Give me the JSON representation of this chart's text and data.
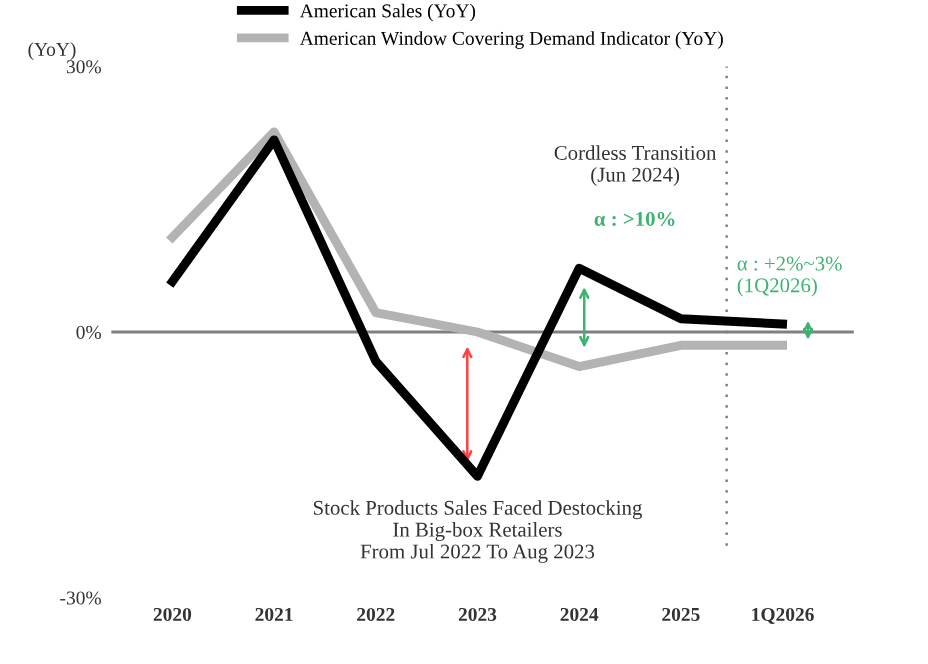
{
  "chart_data": {
    "type": "line",
    "ylabel": "(YoY)",
    "categories": [
      "2020",
      "2021",
      "2022",
      "2023",
      "2024",
      "2025",
      "1Q2026"
    ],
    "series": [
      {
        "name": "American Sales (YoY)",
        "color": "#000000",
        "values": [
          5.7,
          21.7,
          -3.3,
          -16.3,
          7.2,
          1.5,
          0.9
        ]
      },
      {
        "name": "American Window Covering Demand Indicator (YoY)",
        "color": "#b3b3b3",
        "values": [
          10.7,
          22.6,
          2.2,
          0,
          -3.9,
          -1.5,
          -1.5
        ]
      }
    ],
    "ylim": [
      -30,
      30
    ],
    "yticks": [
      {
        "value": -30,
        "label": "-30%"
      },
      {
        "value": 0,
        "label": "0%"
      },
      {
        "value": 30,
        "label": "30%"
      }
    ],
    "ref_lines": [
      {
        "axis": "y",
        "value": 0,
        "color": "#808080",
        "line_style": "solid"
      }
    ],
    "annotations": [
      "Stock Products Sales Faced Destocking\nIn Big-box Retailers\nFrom Jul 2022 To Aug 2023",
      "Cordless Transition\n(Jun 2024)",
      "α : >10%",
      "α : +2%~3%\n(1Q2026)"
    ],
    "grid": false,
    "legend": "top",
    "marker": "none",
    "line_style": "solid"
  }
}
